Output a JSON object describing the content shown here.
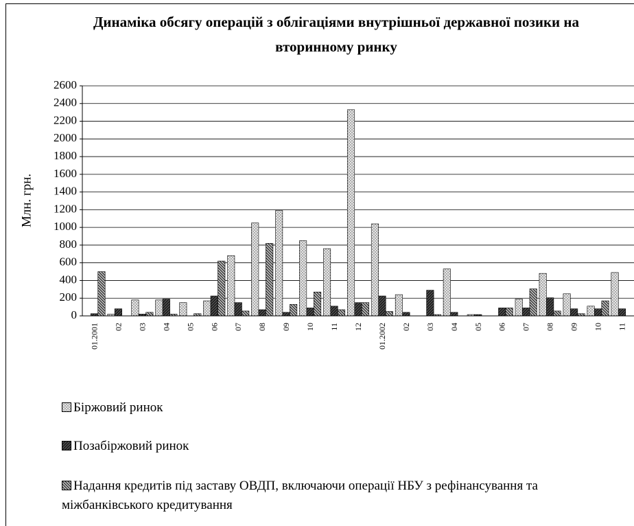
{
  "chart_data": {
    "type": "bar",
    "title": "Динаміка обсягу операцій з облігаціями внутрішньої державної позики на вторинному ринку",
    "y_label": "Млн. грн.",
    "categories": [
      "01.2001",
      "02",
      "03",
      "04",
      "05",
      "06",
      "07",
      "08",
      "09",
      "10",
      "11",
      "12",
      "01.2002",
      "02",
      "03",
      "04",
      "05",
      "06",
      "07",
      "08",
      "09",
      "10",
      "11"
    ],
    "series": [
      {
        "name": "Біржовий ринок",
        "color": "#e6e6e6",
        "values": [
          0,
          20,
          180,
          180,
          150,
          170,
          680,
          1050,
          1190,
          850,
          760,
          2330,
          1040,
          240,
          0,
          530,
          15,
          0,
          190,
          480,
          250,
          110,
          490
        ]
      },
      {
        "name": "Позабіржовий ринок",
        "color": "#222222",
        "values": [
          25,
          80,
          20,
          190,
          0,
          225,
          150,
          70,
          40,
          90,
          110,
          150,
          225,
          40,
          290,
          40,
          15,
          90,
          90,
          205,
          80,
          80,
          80
        ]
      },
      {
        "name": "Надання кредитів під заставу ОВДП, включаючи операції НБУ з рефінансування та міжбанківського кредитування",
        "color": "#bbbbbb",
        "values": [
          500,
          0,
          40,
          20,
          25,
          620,
          55,
          820,
          130,
          270,
          70,
          150,
          50,
          0,
          15,
          0,
          0,
          90,
          305,
          55,
          25,
          170,
          0
        ]
      }
    ],
    "ylim": [
      0,
      2600
    ],
    "yticks": [
      0,
      200,
      400,
      600,
      800,
      1000,
      1200,
      1400,
      1600,
      1800,
      2000,
      2200,
      2400,
      2600
    ],
    "grid": true
  }
}
